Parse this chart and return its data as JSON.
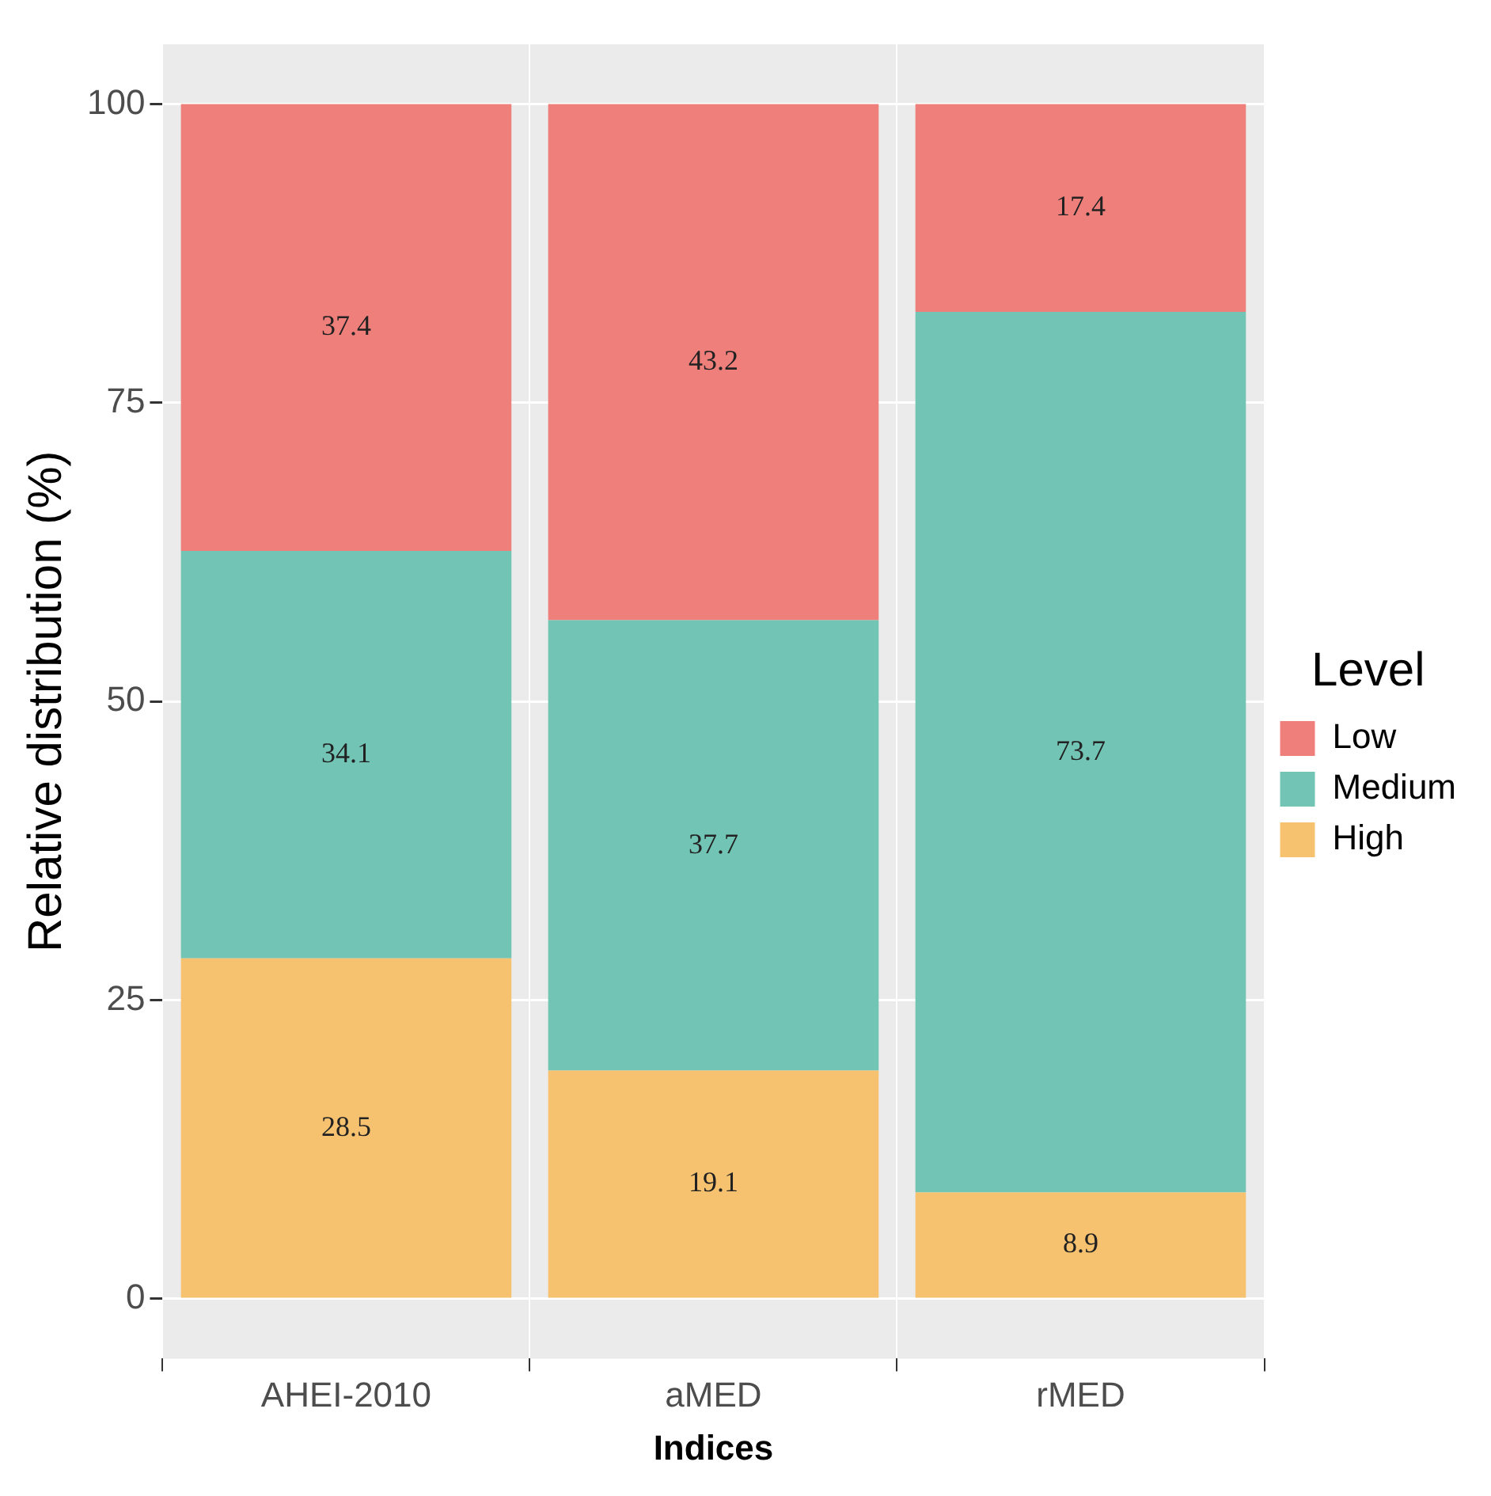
{
  "chart_data": {
    "type": "bar",
    "xlabel": "Indices",
    "ylabel": "Relative distribution (%)",
    "legend_title": "Level",
    "categories": [
      "AHEI-2010",
      "aMED",
      "rMED"
    ],
    "series": [
      {
        "name": "High",
        "color": "#f6c26f",
        "values": [
          28.5,
          19.1,
          8.9
        ]
      },
      {
        "name": "Medium",
        "color": "#72c4b4",
        "values": [
          34.1,
          37.7,
          73.7
        ]
      },
      {
        "name": "Low",
        "color": "#ef7f7b",
        "values": [
          37.4,
          43.2,
          17.4
        ]
      }
    ],
    "stacked": true,
    "ylim": [
      -5,
      105
    ],
    "yticks": [
      0,
      25,
      50,
      75,
      100
    ],
    "grid": true,
    "legend": "right",
    "data_labels": true
  }
}
